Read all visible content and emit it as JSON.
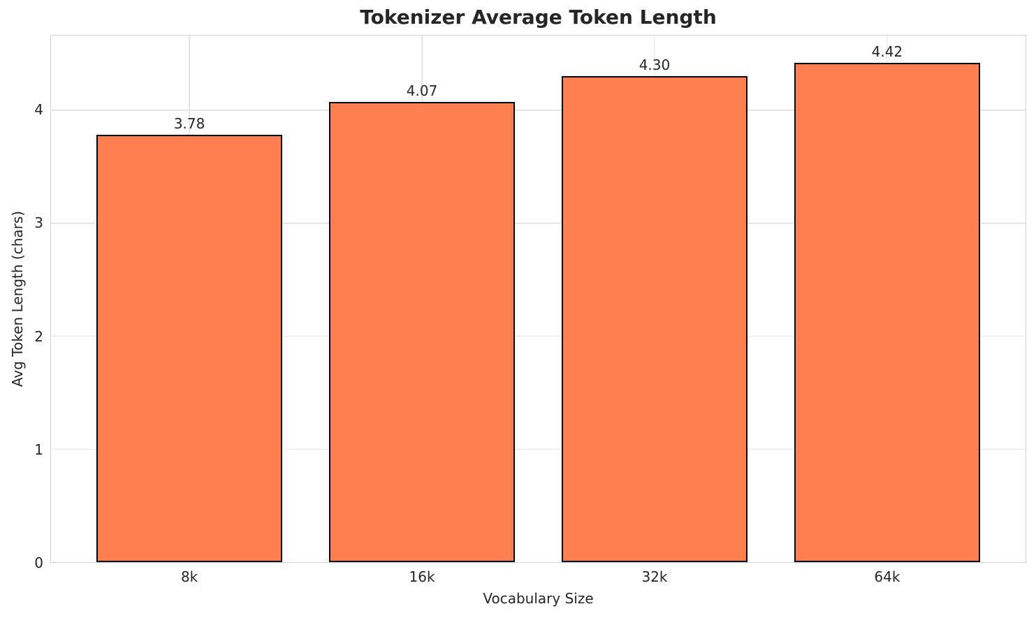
{
  "chart_data": {
    "type": "bar",
    "title": "Tokenizer Average Token Length",
    "xlabel": "Vocabulary Size",
    "ylabel": "Avg Token Length (chars)",
    "categories": [
      "8k",
      "16k",
      "32k",
      "64k"
    ],
    "values": [
      3.78,
      4.07,
      4.3,
      4.42
    ],
    "bar_labels": [
      "3.78",
      "4.07",
      "4.30",
      "4.42"
    ],
    "yticks": [
      0,
      1,
      2,
      3,
      4
    ],
    "ylim": [
      0,
      4.66
    ],
    "grid": true,
    "legend_position": "none",
    "colors": {
      "bar_fill": "#FF7F50",
      "bar_edge": "#000000",
      "grid": "#e4e4e4",
      "spine": "#d2d2d2",
      "text": "#262626"
    }
  }
}
